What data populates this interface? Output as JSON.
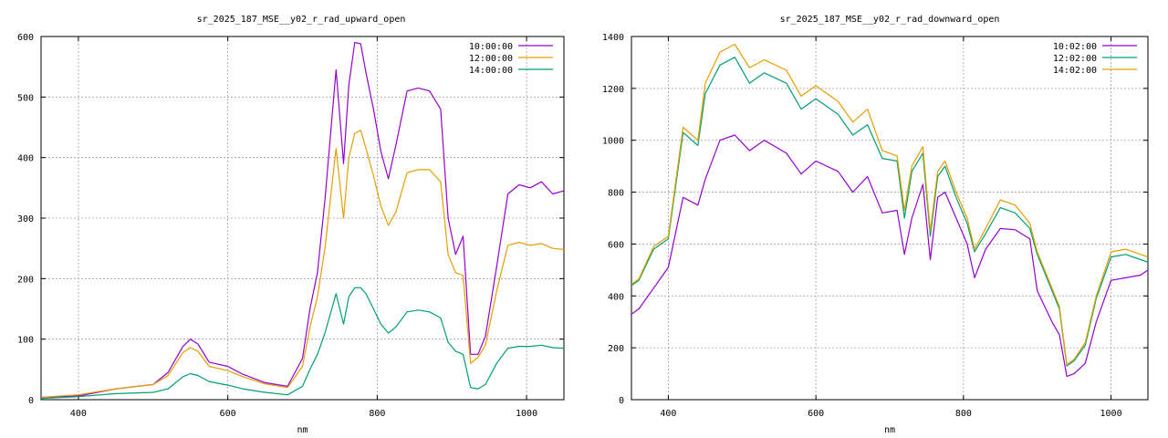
{
  "colors": {
    "series1": "#9400d3",
    "series2": "#009e73",
    "series3": "#e69f00",
    "grid": "#a0a0a0",
    "frame": "#000000"
  },
  "chart_data": [
    {
      "type": "line",
      "title": "sr_2025_187_MSE__y02_r_rad_upward_open",
      "xlabel": "nm",
      "ylabel": "",
      "xlim": [
        350,
        1050
      ],
      "ylim": [
        0,
        600
      ],
      "xticks": [
        400,
        600,
        800,
        1000
      ],
      "yticks": [
        0,
        100,
        200,
        300,
        400,
        500,
        600
      ],
      "grid": true,
      "legend_position": "top-right",
      "series": [
        {
          "name": "10:00:00",
          "color": "#9400d3",
          "x": [
            350,
            400,
            450,
            500,
            520,
            540,
            550,
            560,
            575,
            600,
            620,
            650,
            680,
            700,
            710,
            720,
            730,
            745,
            755,
            762,
            770,
            778,
            785,
            795,
            805,
            815,
            825,
            840,
            855,
            870,
            885,
            895,
            905,
            915,
            925,
            935,
            945,
            960,
            975,
            990,
            1005,
            1020,
            1035,
            1050
          ],
          "y": [
            4,
            6,
            18,
            25,
            45,
            88,
            100,
            92,
            62,
            55,
            42,
            28,
            22,
            68,
            150,
            210,
            330,
            545,
            390,
            520,
            590,
            588,
            540,
            480,
            410,
            365,
            420,
            510,
            515,
            510,
            480,
            300,
            240,
            270,
            75,
            75,
            105,
            220,
            340,
            355,
            350,
            360,
            340,
            345
          ]
        },
        {
          "name": "12:00:00",
          "color": "#e69f00",
          "x": [
            350,
            400,
            450,
            500,
            520,
            540,
            550,
            560,
            575,
            600,
            620,
            650,
            680,
            700,
            710,
            720,
            730,
            745,
            755,
            762,
            770,
            778,
            785,
            795,
            805,
            815,
            825,
            840,
            855,
            870,
            885,
            895,
            905,
            915,
            925,
            935,
            945,
            960,
            975,
            990,
            1005,
            1020,
            1035,
            1050
          ],
          "y": [
            4,
            8,
            18,
            25,
            40,
            78,
            86,
            80,
            55,
            48,
            38,
            26,
            20,
            55,
            120,
            170,
            250,
            415,
            300,
            400,
            440,
            445,
            415,
            370,
            320,
            288,
            310,
            375,
            380,
            380,
            360,
            240,
            210,
            205,
            60,
            70,
            90,
            180,
            255,
            260,
            255,
            258,
            250,
            248
          ]
        },
        {
          "name": "14:00:00",
          "color": "#009e73",
          "x": [
            350,
            400,
            450,
            500,
            520,
            540,
            550,
            560,
            575,
            600,
            620,
            650,
            680,
            700,
            710,
            720,
            730,
            745,
            755,
            762,
            770,
            778,
            785,
            795,
            805,
            815,
            825,
            840,
            855,
            870,
            885,
            895,
            905,
            915,
            925,
            935,
            945,
            960,
            975,
            990,
            1005,
            1020,
            1035,
            1050
          ],
          "y": [
            2,
            5,
            10,
            12,
            18,
            38,
            43,
            40,
            30,
            24,
            18,
            12,
            8,
            22,
            50,
            75,
            110,
            175,
            125,
            170,
            185,
            185,
            175,
            150,
            125,
            110,
            120,
            145,
            148,
            145,
            135,
            95,
            80,
            75,
            20,
            18,
            25,
            60,
            85,
            88,
            88,
            90,
            86,
            85
          ]
        }
      ]
    },
    {
      "type": "line",
      "title": "sr_2025_187_MSE__y02_r_rad_downward_open",
      "xlabel": "nm",
      "ylabel": "",
      "xlim": [
        350,
        1050
      ],
      "ylim": [
        0,
        1400
      ],
      "xticks": [
        400,
        600,
        800,
        1000
      ],
      "yticks": [
        0,
        200,
        400,
        600,
        800,
        1000,
        1200,
        1400
      ],
      "grid": true,
      "legend_position": "top-right",
      "series": [
        {
          "name": "10:02:00",
          "color": "#9400d3",
          "x": [
            350,
            360,
            380,
            400,
            420,
            440,
            450,
            470,
            490,
            510,
            530,
            560,
            580,
            600,
            630,
            650,
            670,
            690,
            710,
            720,
            730,
            745,
            755,
            765,
            775,
            790,
            805,
            815,
            830,
            850,
            870,
            890,
            900,
            920,
            930,
            940,
            950,
            965,
            980,
            1000,
            1020,
            1040,
            1050
          ],
          "y": [
            330,
            350,
            430,
            510,
            780,
            750,
            850,
            1000,
            1020,
            960,
            1000,
            950,
            870,
            920,
            880,
            800,
            860,
            720,
            730,
            560,
            700,
            830,
            540,
            780,
            800,
            700,
            600,
            470,
            580,
            660,
            655,
            620,
            420,
            300,
            250,
            90,
            100,
            140,
            300,
            460,
            470,
            480,
            500
          ]
        },
        {
          "name": "12:02:00",
          "color": "#009e73",
          "x": [
            350,
            360,
            380,
            400,
            420,
            440,
            450,
            470,
            490,
            510,
            530,
            560,
            580,
            600,
            630,
            650,
            670,
            690,
            710,
            720,
            730,
            745,
            755,
            765,
            775,
            790,
            805,
            815,
            830,
            850,
            870,
            890,
            900,
            920,
            930,
            940,
            950,
            965,
            980,
            1000,
            1020,
            1040,
            1050
          ],
          "y": [
            440,
            460,
            580,
            620,
            1030,
            980,
            1180,
            1290,
            1320,
            1220,
            1260,
            1220,
            1120,
            1160,
            1100,
            1020,
            1060,
            930,
            920,
            700,
            880,
            950,
            630,
            860,
            900,
            780,
            680,
            570,
            640,
            740,
            720,
            660,
            560,
            420,
            350,
            130,
            150,
            210,
            390,
            550,
            560,
            540,
            530
          ]
        },
        {
          "name": "14:02:00",
          "color": "#e69f00",
          "x": [
            350,
            360,
            380,
            400,
            420,
            440,
            450,
            470,
            490,
            510,
            530,
            560,
            580,
            600,
            630,
            650,
            670,
            690,
            710,
            720,
            730,
            745,
            755,
            765,
            775,
            790,
            805,
            815,
            830,
            850,
            870,
            890,
            900,
            920,
            930,
            940,
            950,
            965,
            980,
            1000,
            1020,
            1040,
            1050
          ],
          "y": [
            445,
            465,
            590,
            630,
            1050,
            1000,
            1220,
            1340,
            1370,
            1280,
            1310,
            1270,
            1170,
            1210,
            1150,
            1070,
            1120,
            960,
            940,
            730,
            900,
            975,
            650,
            880,
            920,
            800,
            700,
            580,
            660,
            770,
            750,
            680,
            570,
            430,
            360,
            135,
            155,
            220,
            400,
            570,
            580,
            560,
            550
          ]
        }
      ]
    }
  ]
}
